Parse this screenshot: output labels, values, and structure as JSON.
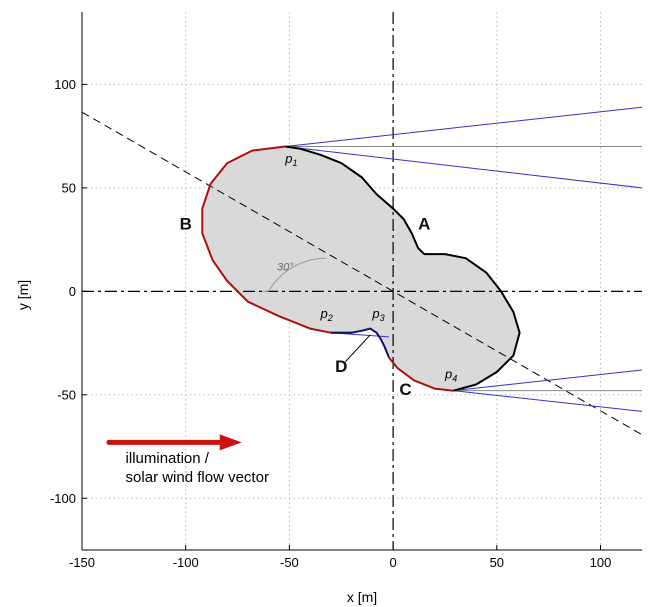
{
  "chart_data": {
    "type": "line",
    "title": "",
    "xlabel": "x [m]",
    "ylabel": "y [m]",
    "xlim": [
      -150,
      120
    ],
    "ylim": [
      -125,
      135
    ],
    "xticks": [
      -150,
      -100,
      -50,
      0,
      50,
      100
    ],
    "yticks": [
      -100,
      -50,
      0,
      50,
      100
    ],
    "grid": true,
    "colors": {
      "sunlit": "#000000",
      "shadowed": "#aa1111",
      "ray": "#3333cc",
      "ray_center": "#888888",
      "fill": "#d9d9d9",
      "arrow": "#cc1111"
    },
    "body_outline": [
      [
        -52,
        70
      ],
      [
        -45,
        69
      ],
      [
        -35,
        66
      ],
      [
        -25,
        62
      ],
      [
        -15,
        55
      ],
      [
        -8,
        47
      ],
      [
        0,
        40
      ],
      [
        5,
        35
      ],
      [
        9,
        28
      ],
      [
        12,
        21
      ],
      [
        15,
        18
      ],
      [
        25,
        18
      ],
      [
        35,
        16
      ],
      [
        45,
        9
      ],
      [
        52,
        0
      ],
      [
        58,
        -10
      ],
      [
        61,
        -20
      ],
      [
        58,
        -31
      ],
      [
        50,
        -39
      ],
      [
        40,
        -45
      ],
      [
        29,
        -48
      ],
      [
        20,
        -47
      ],
      [
        10,
        -43
      ],
      [
        2,
        -37
      ],
      [
        -2,
        -32
      ],
      [
        -4,
        -27
      ],
      [
        -6,
        -23
      ],
      [
        -8,
        -20
      ],
      [
        -11,
        -18
      ],
      [
        -15,
        -19
      ],
      [
        -20,
        -20
      ],
      [
        -30,
        -20
      ],
      [
        -40,
        -18
      ],
      [
        -55,
        -12
      ],
      [
        -70,
        -5
      ],
      [
        -80,
        5
      ],
      [
        -87,
        15
      ],
      [
        -92,
        28
      ],
      [
        -92,
        40
      ],
      [
        -88,
        52
      ],
      [
        -80,
        62
      ],
      [
        -68,
        68
      ],
      [
        -52,
        70
      ]
    ],
    "sunlit_boundary": [
      [
        -52,
        70
      ],
      [
        -45,
        69
      ],
      [
        -35,
        66
      ],
      [
        -25,
        62
      ],
      [
        -15,
        55
      ],
      [
        -8,
        47
      ],
      [
        0,
        40
      ],
      [
        5,
        35
      ],
      [
        9,
        28
      ],
      [
        12,
        21
      ],
      [
        15,
        18
      ],
      [
        25,
        18
      ],
      [
        35,
        16
      ],
      [
        45,
        9
      ],
      [
        52,
        0
      ],
      [
        58,
        -10
      ],
      [
        61,
        -20
      ],
      [
        58,
        -31
      ],
      [
        50,
        -39
      ],
      [
        40,
        -45
      ],
      [
        29,
        -48
      ]
    ],
    "shadowed_boundary_B": [
      [
        -52,
        70
      ],
      [
        -68,
        68
      ],
      [
        -80,
        62
      ],
      [
        -88,
        52
      ],
      [
        -92,
        40
      ],
      [
        -92,
        28
      ],
      [
        -87,
        15
      ],
      [
        -80,
        5
      ],
      [
        -70,
        -5
      ],
      [
        -55,
        -12
      ],
      [
        -40,
        -18
      ],
      [
        -30,
        -20
      ],
      [
        -20,
        -20
      ]
    ],
    "shadowed_boundary_C": [
      [
        -2,
        -32
      ],
      [
        2,
        -37
      ],
      [
        10,
        -43
      ],
      [
        20,
        -47
      ],
      [
        29,
        -48
      ]
    ],
    "notch_D": [
      [
        -30,
        -20
      ],
      [
        -20,
        -20
      ],
      [
        -15,
        -19
      ],
      [
        -11,
        -18
      ],
      [
        -8,
        -20
      ],
      [
        -6,
        -23
      ],
      [
        -4,
        -27
      ],
      [
        -2,
        -32
      ]
    ],
    "dashed_axis": {
      "slope_deg": -30,
      "through": [
        0,
        0
      ]
    },
    "rays": [
      {
        "from": [
          -52,
          70
        ],
        "to": [
          120,
          89
        ],
        "color": "blue"
      },
      {
        "from": [
          -52,
          70
        ],
        "to": [
          120,
          70
        ],
        "color": "gray"
      },
      {
        "from": [
          -52,
          70
        ],
        "to": [
          120,
          50
        ],
        "color": "blue"
      },
      {
        "from": [
          29,
          -48
        ],
        "to": [
          120,
          -38
        ],
        "color": "blue"
      },
      {
        "from": [
          29,
          -48
        ],
        "to": [
          120,
          -48
        ],
        "color": "gray"
      },
      {
        "from": [
          29,
          -48
        ],
        "to": [
          120,
          -58
        ],
        "color": "blue"
      },
      {
        "from": [
          -30,
          -20
        ],
        "to": [
          -2,
          -22
        ],
        "color": "blue"
      }
    ],
    "region_labels": [
      {
        "text": "A",
        "at": [
          15,
          30
        ]
      },
      {
        "text": "B",
        "at": [
          -100,
          30
        ]
      },
      {
        "text": "C",
        "at": [
          6,
          -50
        ]
      },
      {
        "text": "D",
        "at": [
          -25,
          -39
        ]
      }
    ],
    "point_labels": [
      {
        "base": "p",
        "sub": "1",
        "at": [
          -52,
          62
        ]
      },
      {
        "base": "p",
        "sub": "2",
        "at": [
          -35,
          -13
        ]
      },
      {
        "base": "p",
        "sub": "3",
        "at": [
          -10,
          -13
        ]
      },
      {
        "base": "p",
        "sub": "4",
        "at": [
          25,
          -42
        ]
      }
    ],
    "angle_label": "30°",
    "legend_arrow": {
      "from": [
        -137,
        -73
      ],
      "to": [
        -73,
        -73
      ]
    },
    "legend_text": [
      "illumination /",
      "solar wind flow vector"
    ]
  }
}
